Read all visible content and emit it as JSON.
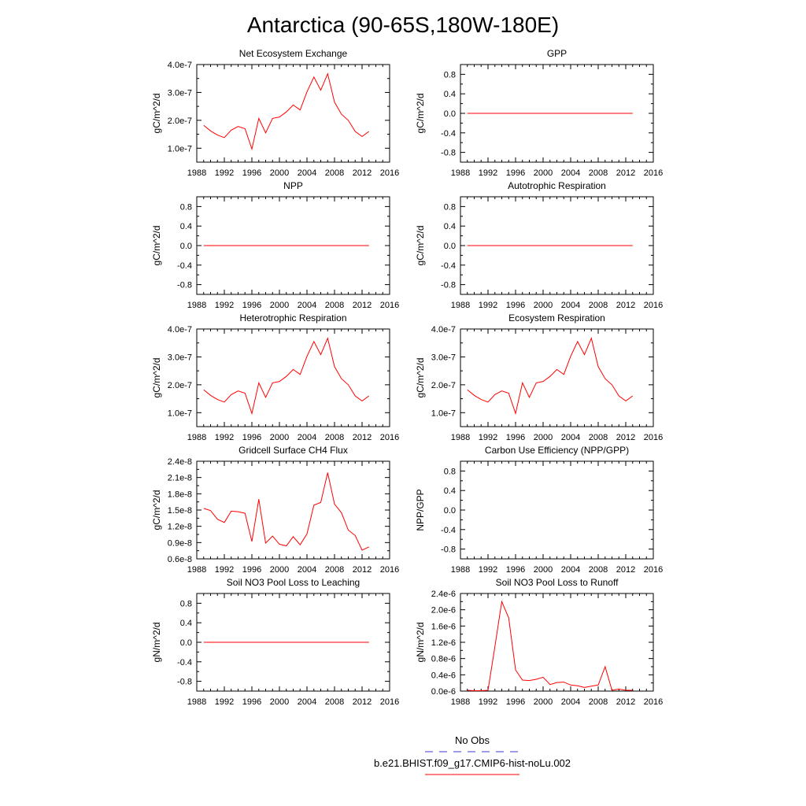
{
  "figure_title": "Antarctica (90-65S,180W-180E)",
  "legend": {
    "entries": [
      {
        "label": "No Obs",
        "color": "#3b3bd6",
        "style": "dashed"
      },
      {
        "label": "b.e21.BHIST.f09_g17.CMIP6-hist-noLu.002",
        "color": "#ff0000",
        "style": "solid"
      }
    ]
  },
  "chart_data": [
    {
      "type": "line",
      "title": "Net Ecosystem Exchange",
      "ylabel": "gC/m^2/d",
      "xlim": [
        1988,
        2016
      ],
      "xticks": [
        "1988",
        "1992",
        "1996",
        "2000",
        "2004",
        "2008",
        "2012",
        "2016"
      ],
      "ylim": [
        5e-08,
        4e-07
      ],
      "yticks": [
        1e-07,
        2e-07,
        3e-07,
        4e-07
      ],
      "ytick_labels": [
        "1.0e-7",
        "2.0e-7",
        "3.0e-7",
        "4.0e-7"
      ],
      "series": [
        {
          "color": "#ff0000",
          "x": [
            1989,
            1990,
            1991,
            1992,
            1993,
            1994,
            1995,
            1996,
            1997,
            1998,
            1999,
            2000,
            2001,
            2002,
            2003,
            2004,
            2005,
            2006,
            2007,
            2008,
            2009,
            2010,
            2011,
            2012,
            2013
          ],
          "values": [
            1.82e-07,
            1.62e-07,
            1.47e-07,
            1.38e-07,
            1.65e-07,
            1.78e-07,
            1.7e-07,
            9.7e-08,
            2.07e-07,
            1.55e-07,
            2.07e-07,
            2.12e-07,
            2.3e-07,
            2.55e-07,
            2.37e-07,
            3.02e-07,
            3.55e-07,
            3.08e-07,
            3.67e-07,
            2.65e-07,
            2.22e-07,
            2e-07,
            1.6e-07,
            1.42e-07,
            1.6e-07
          ]
        }
      ]
    },
    {
      "type": "line",
      "title": "GPP",
      "ylabel": "gC/m^2/d",
      "xlim": [
        1988,
        2016
      ],
      "xticks": [
        "1988",
        "1992",
        "1996",
        "2000",
        "2004",
        "2008",
        "2012",
        "2016"
      ],
      "ylim": [
        -1.0,
        1.0
      ],
      "yticks": [
        -0.8,
        -0.4,
        0.0,
        0.4,
        0.8
      ],
      "ytick_labels": [
        "-0.8",
        "-0.4",
        "0.0",
        "0.4",
        "0.8"
      ],
      "series": [
        {
          "color": "#ff0000",
          "x": [
            1989,
            2013
          ],
          "values": [
            0,
            0
          ]
        }
      ]
    },
    {
      "type": "line",
      "title": "NPP",
      "ylabel": "gC/m^2/d",
      "xlim": [
        1988,
        2016
      ],
      "xticks": [
        "1988",
        "1992",
        "1996",
        "2000",
        "2004",
        "2008",
        "2012",
        "2016"
      ],
      "ylim": [
        -1.0,
        1.0
      ],
      "yticks": [
        -0.8,
        -0.4,
        0.0,
        0.4,
        0.8
      ],
      "ytick_labels": [
        "-0.8",
        "-0.4",
        "0.0",
        "0.4",
        "0.8"
      ],
      "series": [
        {
          "color": "#ff0000",
          "x": [
            1989,
            2013
          ],
          "values": [
            0,
            0
          ]
        }
      ]
    },
    {
      "type": "line",
      "title": "Autotrophic Respiration",
      "ylabel": "gC/m^2/d",
      "xlim": [
        1988,
        2016
      ],
      "xticks": [
        "1988",
        "1992",
        "1996",
        "2000",
        "2004",
        "2008",
        "2012",
        "2016"
      ],
      "ylim": [
        -1.0,
        1.0
      ],
      "yticks": [
        -0.8,
        -0.4,
        0.0,
        0.4,
        0.8
      ],
      "ytick_labels": [
        "-0.8",
        "-0.4",
        "0.0",
        "0.4",
        "0.8"
      ],
      "series": [
        {
          "color": "#ff0000",
          "x": [
            1989,
            2013
          ],
          "values": [
            0,
            0
          ]
        }
      ]
    },
    {
      "type": "line",
      "title": "Heterotrophic Respiration",
      "ylabel": "gC/m^2/d",
      "xlim": [
        1988,
        2016
      ],
      "xticks": [
        "1988",
        "1992",
        "1996",
        "2000",
        "2004",
        "2008",
        "2012",
        "2016"
      ],
      "ylim": [
        5e-08,
        4e-07
      ],
      "yticks": [
        1e-07,
        2e-07,
        3e-07,
        4e-07
      ],
      "ytick_labels": [
        "1.0e-7",
        "2.0e-7",
        "3.0e-7",
        "4.0e-7"
      ],
      "series": [
        {
          "color": "#ff0000",
          "x": [
            1989,
            1990,
            1991,
            1992,
            1993,
            1994,
            1995,
            1996,
            1997,
            1998,
            1999,
            2000,
            2001,
            2002,
            2003,
            2004,
            2005,
            2006,
            2007,
            2008,
            2009,
            2010,
            2011,
            2012,
            2013
          ],
          "values": [
            1.82e-07,
            1.62e-07,
            1.47e-07,
            1.38e-07,
            1.65e-07,
            1.78e-07,
            1.7e-07,
            9.7e-08,
            2.07e-07,
            1.55e-07,
            2.07e-07,
            2.12e-07,
            2.3e-07,
            2.55e-07,
            2.37e-07,
            3.02e-07,
            3.55e-07,
            3.08e-07,
            3.67e-07,
            2.65e-07,
            2.22e-07,
            2e-07,
            1.6e-07,
            1.42e-07,
            1.6e-07
          ]
        }
      ]
    },
    {
      "type": "line",
      "title": "Ecosystem Respiration",
      "ylabel": "gC/m^2/d",
      "xlim": [
        1988,
        2016
      ],
      "xticks": [
        "1988",
        "1992",
        "1996",
        "2000",
        "2004",
        "2008",
        "2012",
        "2016"
      ],
      "ylim": [
        5e-08,
        4e-07
      ],
      "yticks": [
        1e-07,
        2e-07,
        3e-07,
        4e-07
      ],
      "ytick_labels": [
        "1.0e-7",
        "2.0e-7",
        "3.0e-7",
        "4.0e-7"
      ],
      "series": [
        {
          "color": "#ff0000",
          "x": [
            1989,
            1990,
            1991,
            1992,
            1993,
            1994,
            1995,
            1996,
            1997,
            1998,
            1999,
            2000,
            2001,
            2002,
            2003,
            2004,
            2005,
            2006,
            2007,
            2008,
            2009,
            2010,
            2011,
            2012,
            2013
          ],
          "values": [
            1.82e-07,
            1.62e-07,
            1.47e-07,
            1.38e-07,
            1.65e-07,
            1.78e-07,
            1.7e-07,
            9.7e-08,
            2.07e-07,
            1.55e-07,
            2.07e-07,
            2.12e-07,
            2.3e-07,
            2.55e-07,
            2.37e-07,
            3.02e-07,
            3.55e-07,
            3.08e-07,
            3.67e-07,
            2.65e-07,
            2.22e-07,
            2e-07,
            1.6e-07,
            1.42e-07,
            1.6e-07
          ]
        }
      ]
    },
    {
      "type": "line",
      "title": "Gridcell Surface CH4 Flux",
      "ylabel": "gC/m^2/d",
      "xlim": [
        1988,
        2016
      ],
      "xticks": [
        "1988",
        "1992",
        "1996",
        "2000",
        "2004",
        "2008",
        "2012",
        "2016"
      ],
      "ylim": [
        6e-09,
        2.4e-08
      ],
      "yticks": [
        6e-09,
        9e-09,
        1.2e-08,
        1.5e-08,
        1.8e-08,
        2.1e-08,
        2.4e-08
      ],
      "ytick_labels": [
        "0.6e-8",
        "0.9e-8",
        "1.2e-8",
        "1.5e-8",
        "1.8e-8",
        "2.1e-8",
        "2.4e-8"
      ],
      "series": [
        {
          "color": "#ff0000",
          "x": [
            1989,
            1990,
            1991,
            1992,
            1993,
            1994,
            1995,
            1996,
            1997,
            1998,
            1999,
            2000,
            2001,
            2002,
            2003,
            2004,
            2005,
            2006,
            2007,
            2008,
            2009,
            2010,
            2011,
            2012,
            2013
          ],
          "values": [
            1.53e-08,
            1.49e-08,
            1.33e-08,
            1.27e-08,
            1.48e-08,
            1.47e-08,
            1.44e-08,
            9.2e-09,
            1.7e-08,
            8.9e-09,
            1.02e-08,
            8.7e-09,
            8.4e-09,
            1.01e-08,
            8.6e-09,
            1.06e-08,
            1.59e-08,
            1.64e-08,
            2.19e-08,
            1.61e-08,
            1.45e-08,
            1.13e-08,
            1.03e-08,
            7.6e-09,
            8.2e-09
          ]
        }
      ]
    },
    {
      "type": "line",
      "title": "Carbon Use Efficiency (NPP/GPP)",
      "ylabel": "NPP/GPP",
      "xlim": [
        1988,
        2016
      ],
      "xticks": [
        "1988",
        "1992",
        "1996",
        "2000",
        "2004",
        "2008",
        "2012",
        "2016"
      ],
      "ylim": [
        -1.0,
        1.0
      ],
      "yticks": [
        -0.8,
        -0.4,
        0.0,
        0.4,
        0.8
      ],
      "ytick_labels": [
        "-0.8",
        "-0.4",
        "0.0",
        "0.4",
        "0.8"
      ],
      "series": []
    },
    {
      "type": "line",
      "title": "Soil NO3 Pool Loss to Leaching",
      "ylabel": "gN/m^2/d",
      "xlim": [
        1988,
        2016
      ],
      "xticks": [
        "1988",
        "1992",
        "1996",
        "2000",
        "2004",
        "2008",
        "2012",
        "2016"
      ],
      "ylim": [
        -1.0,
        1.0
      ],
      "yticks": [
        -0.8,
        -0.4,
        0.0,
        0.4,
        0.8
      ],
      "ytick_labels": [
        "-0.8",
        "-0.4",
        "0.0",
        "0.4",
        "0.8"
      ],
      "series": [
        {
          "color": "#ff0000",
          "x": [
            1989,
            2013
          ],
          "values": [
            0,
            0
          ]
        }
      ]
    },
    {
      "type": "line",
      "title": "Soil NO3 Pool Loss to Runoff",
      "ylabel": "gN/m^2/d",
      "xlim": [
        1988,
        2016
      ],
      "xticks": [
        "1988",
        "1992",
        "1996",
        "2000",
        "2004",
        "2008",
        "2012",
        "2016"
      ],
      "ylim": [
        0.0,
        2.4e-06
      ],
      "yticks": [
        0.0,
        4e-07,
        8e-07,
        1.2e-06,
        1.6e-06,
        2e-06,
        2.4e-06
      ],
      "ytick_labels": [
        "0.0e-6",
        "0.4e-6",
        "0.8e-6",
        "1.2e-6",
        "1.6e-6",
        "2.0e-6",
        "2.4e-6"
      ],
      "series": [
        {
          "color": "#ff0000",
          "x": [
            1989,
            1990,
            1991,
            1992,
            1993,
            1994,
            1995,
            1996,
            1997,
            1998,
            1999,
            2000,
            2001,
            2002,
            2003,
            2004,
            2005,
            2006,
            2007,
            2008,
            2009,
            2010,
            2011,
            2012,
            2013
          ],
          "values": [
            2e-08,
            1e-08,
            1e-08,
            2e-08,
            1.1e-06,
            2.2e-06,
            1.8e-06,
            5.2e-07,
            2.7e-07,
            2.6e-07,
            2.9e-07,
            3.4e-07,
            1.6e-07,
            2.1e-07,
            2.2e-07,
            1.5e-07,
            1.3e-07,
            9e-08,
            1.2e-07,
            1.5e-07,
            6e-07,
            2e-08,
            5e-08,
            2e-08,
            2e-08
          ]
        }
      ]
    }
  ]
}
